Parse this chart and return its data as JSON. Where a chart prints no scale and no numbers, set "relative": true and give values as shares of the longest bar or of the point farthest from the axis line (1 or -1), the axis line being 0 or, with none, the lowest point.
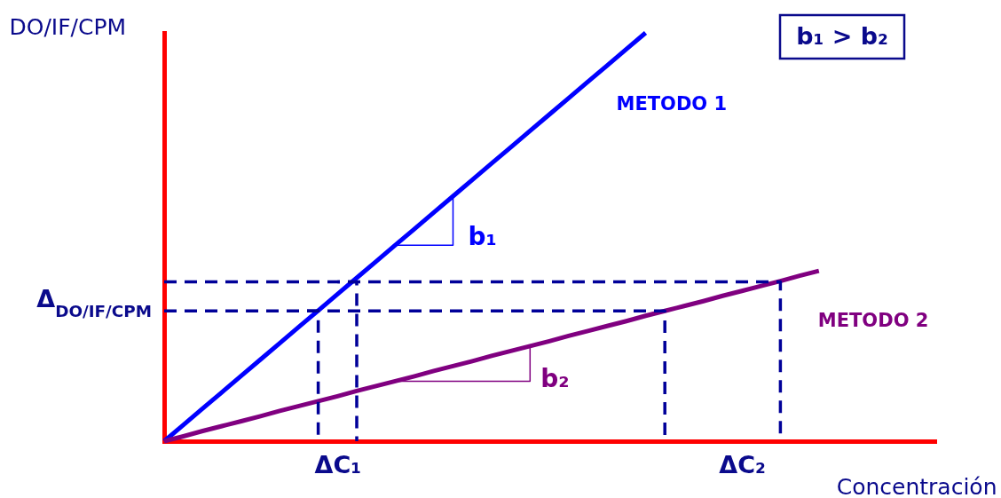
{
  "chart_data": {
    "type": "line",
    "relative": true,
    "xlabel": "Concentración",
    "ylabel": "DO/IF/CPM",
    "categories": [
      null,
      null,
      null,
      null,
      null,
      null,
      null,
      null,
      null,
      "ΔC₁",
      null,
      null,
      null,
      null,
      null,
      null,
      null,
      null,
      null,
      null,
      null,
      null,
      null,
      null,
      null,
      null,
      null,
      null,
      null,
      null,
      "ΔC₂",
      null,
      null,
      null,
      null,
      null,
      null,
      null,
      null,
      null,
      null
    ],
    "series": [
      {
        "name": "METODO 1",
        "color": "#0000ff",
        "values": [
          0,
          0.04,
          0.08,
          0.12,
          0.16,
          0.2,
          0.24,
          0.28,
          0.32,
          0.36,
          0.4,
          0.44,
          0.48,
          0.52,
          0.56,
          0.6,
          0.64,
          0.68,
          0.72,
          0.76,
          0.8,
          0.84,
          0.88,
          0.92,
          0.96,
          1,
          null,
          null,
          null,
          null,
          null,
          null,
          null,
          null,
          null,
          null,
          null,
          null,
          null,
          null,
          null
        ]
      },
      {
        "name": "METODO 2",
        "color": "#800080",
        "values": [
          0,
          0.012,
          0.025,
          0.037,
          0.049,
          0.061,
          0.074,
          0.086,
          0.098,
          0.11,
          0.123,
          0.135,
          0.147,
          0.159,
          0.172,
          0.184,
          0.196,
          0.209,
          0.221,
          0.233,
          0.245,
          0.258,
          0.27,
          0.282,
          0.294,
          0.307,
          0.319,
          0.331,
          0.343,
          0.356,
          0.368,
          0.38,
          0.392,
          0.405,
          0.417,
          null,
          null,
          null,
          null,
          null,
          null
        ]
      },
      {
        "name": "b₁",
        "type": "step",
        "color": "#0000ff",
        "values": [
          null,
          null,
          null,
          null,
          null,
          null,
          null,
          null,
          null,
          null,
          null,
          null,
          0.48,
          0.48,
          0.48,
          0.6,
          null,
          null,
          null,
          null,
          null,
          null,
          null,
          null,
          null,
          null,
          null,
          null,
          null,
          null,
          null,
          null,
          null,
          null,
          null,
          null,
          null,
          null,
          null,
          null,
          null
        ]
      },
      {
        "name": "b₂",
        "type": "step",
        "color": "#800080",
        "values": [
          null,
          null,
          null,
          null,
          null,
          null,
          null,
          null,
          null,
          null,
          null,
          null,
          0.147,
          0.147,
          0.147,
          0.147,
          0.147,
          0.147,
          0.147,
          0.233,
          null,
          null,
          null,
          null,
          null,
          null,
          null,
          null,
          null,
          null,
          null,
          null,
          null,
          null,
          null,
          null,
          null,
          null,
          null,
          null,
          null
        ]
      },
      {
        "type": "step",
        "color": "#000099",
        "line_style": "dashed",
        "values": [
          0.39,
          0.39,
          0.39,
          0.39,
          0.39,
          0.39,
          0.39,
          0.39,
          0.39,
          0.39,
          0.39,
          0.39,
          0.39,
          0.39,
          0.39,
          0.39,
          0.39,
          0.39,
          0.39,
          0.39,
          0.39,
          0.39,
          0.39,
          0.39,
          0.39,
          0.39,
          0.39,
          0.39,
          0.39,
          0.39,
          0.39,
          0.39,
          0,
          null,
          null,
          null,
          null,
          null,
          null,
          null,
          null
        ]
      },
      {
        "type": "step",
        "color": "#000099",
        "line_style": "dashed",
        "values": [
          0.319,
          0.319,
          0.319,
          0.319,
          0.319,
          0.319,
          0.319,
          0.319,
          0.319,
          0.319,
          0.319,
          0.319,
          0.319,
          0.319,
          0.319,
          0.319,
          0.319,
          0.319,
          0.319,
          0.319,
          0.319,
          0.319,
          0.319,
          0.319,
          0.319,
          0.319,
          0,
          null,
          null,
          null,
          null,
          null,
          null,
          null,
          null,
          null,
          null,
          null,
          null,
          null,
          null
        ]
      },
      {
        "type": "step",
        "color": "#000099",
        "line_style": "dashed",
        "values": [
          null,
          null,
          null,
          null,
          null,
          null,
          null,
          null,
          null,
          0.39,
          0,
          null,
          null,
          null,
          null,
          null,
          null,
          null,
          null,
          null,
          null,
          null,
          null,
          null,
          null,
          null,
          null,
          null,
          null,
          null,
          null,
          null,
          null,
          null,
          null,
          null,
          null,
          null,
          null,
          null,
          null
        ]
      },
      {
        "type": "step",
        "color": "#000099",
        "line_style": "dashed",
        "values": [
          null,
          null,
          null,
          null,
          null,
          null,
          null,
          0.319,
          0,
          null,
          null,
          null,
          null,
          null,
          null,
          null,
          null,
          null,
          null,
          null,
          null,
          null,
          null,
          null,
          null,
          null,
          null,
          null,
          null,
          null,
          null,
          null,
          null,
          null,
          null,
          null,
          null,
          null,
          null,
          null,
          null
        ]
      }
    ],
    "annotations": [
      "b₁ > b₂",
      "Δ$_{DO/IF/CPM}$"
    ]
  }
}
